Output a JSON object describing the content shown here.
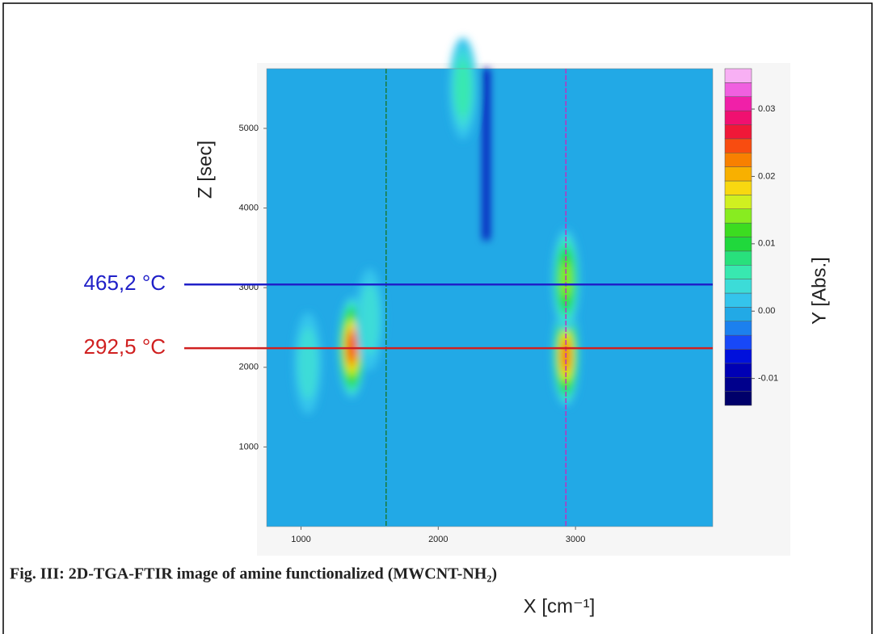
{
  "chart_data": {
    "type": "heatmap",
    "xlabel": "X [cm⁻¹]",
    "ylabel": "Z [sec]",
    "colorbar_label": "Y [Abs.]",
    "caption": "Fig. III: 2D-TGA-FTIR image of amine functionalized (MWCNT-NH₂)",
    "xlim": [
      750,
      4000
    ],
    "xticks": [
      1000,
      2000,
      3000
    ],
    "ylim": [
      0,
      5750
    ],
    "yticks": [
      1000,
      2000,
      3000,
      4000,
      5000
    ],
    "clim": [
      -0.014,
      0.036
    ],
    "cticks": [
      -0.01,
      {
        "value": 0,
        "label": "0.00"
      },
      0.01,
      0.02,
      0.03
    ],
    "colors": [
      "#00006a",
      "#00008c",
      "#0000b4",
      "#0010dc",
      "#1848f8",
      "#1c80ee",
      "#22a9e6",
      "#34c4ec",
      "#3cdcd8",
      "#38e8b0",
      "#28e07c",
      "#20d83c",
      "#3cdc20",
      "#88ec20",
      "#d0f020",
      "#f8d810",
      "#f8b000",
      "#f88000",
      "#f84c10",
      "#f01838",
      "#f01070",
      "#f020a8",
      "#f060e0",
      "#f8b0f4"
    ],
    "base_value": 0,
    "peaks": [
      {
        "x": 1370,
        "z": 2250,
        "value": 0.025
      },
      {
        "x": 2930,
        "z": 2150,
        "value": 0.022
      },
      {
        "x": 2930,
        "z": 3100,
        "value": 0.015
      },
      {
        "x": 2180,
        "z": 5500,
        "value": 0.006
      },
      {
        "x": 1050,
        "z": 2050,
        "value": 0.003
      },
      {
        "x": 1500,
        "z": 2600,
        "value": 0.003
      }
    ],
    "bands": [
      {
        "x": 2350,
        "z0": 3600,
        "z1": 5750,
        "value": -0.008
      }
    ],
    "vlines": [
      {
        "x": 1620,
        "color": "#1a7a3a"
      },
      {
        "x": 2930,
        "color": "#c030c0"
      }
    ],
    "annotations": [
      {
        "label": "465,2 °C",
        "z": 3040,
        "color": "#2020c8"
      },
      {
        "label": "292,5 °C",
        "z": 2240,
        "color": "#d02020"
      }
    ]
  }
}
